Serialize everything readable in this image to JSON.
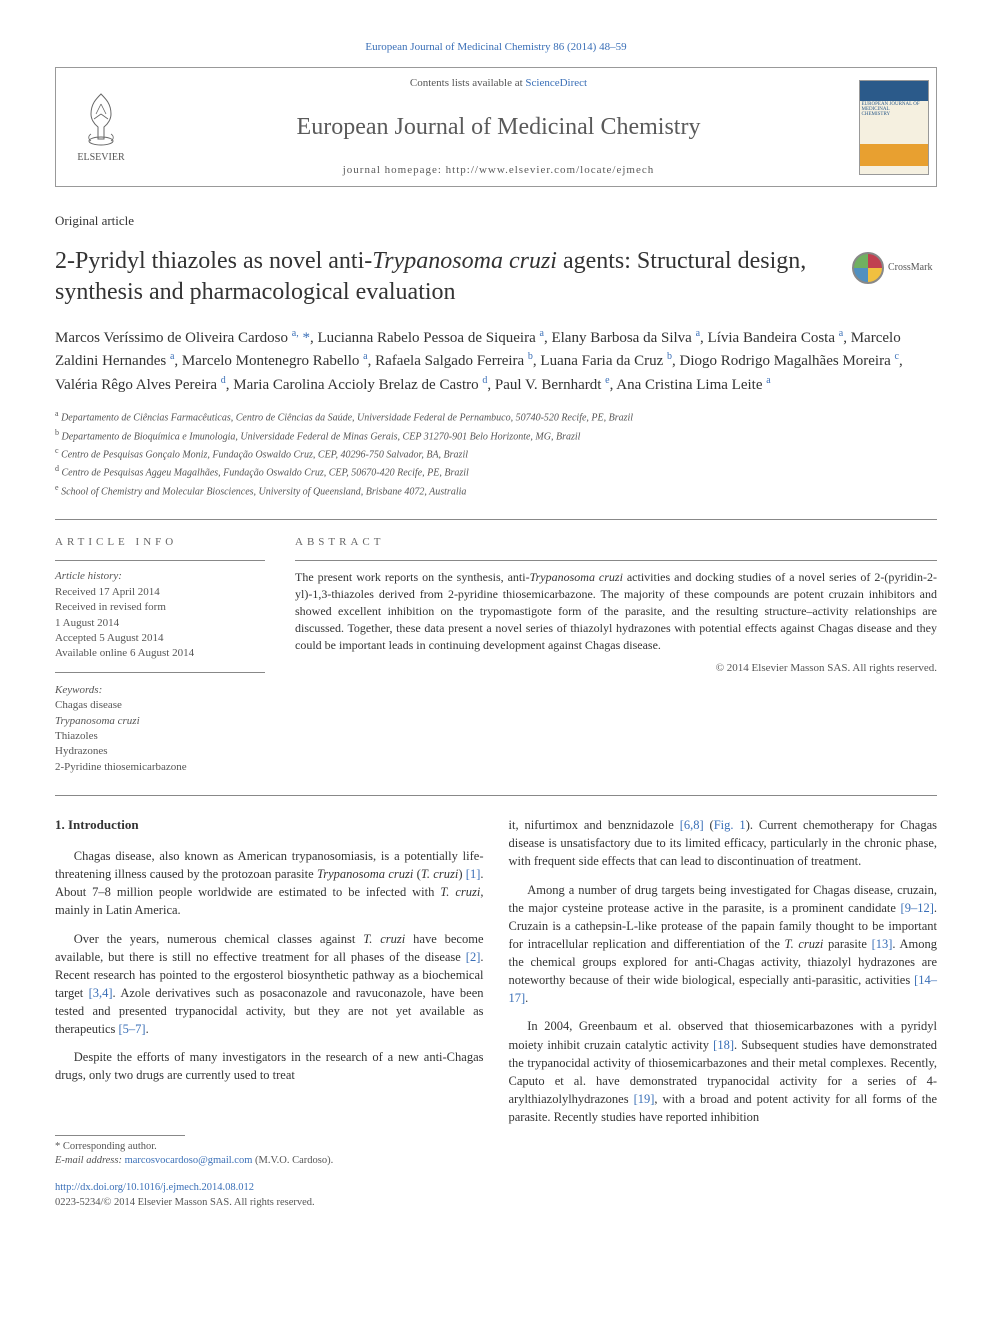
{
  "citation": "European Journal of Medicinal Chemistry 86 (2014) 48–59",
  "header": {
    "contents_prefix": "Contents lists available at ",
    "contents_link": "ScienceDirect",
    "journal_name": "European Journal of Medicinal Chemistry",
    "homepage_label": "journal homepage: http://www.elsevier.com/locate/ejmech",
    "elsevier_label": "ELSEVIER"
  },
  "article_type": "Original article",
  "title_pre": "2-Pyridyl thiazoles as novel anti-",
  "title_em": "Trypanosoma cruzi",
  "title_post": " agents: Structural design, synthesis and pharmacological evaluation",
  "crossmark_label": "CrossMark",
  "authors_html": "Marcos Veríssimo de Oliveira Cardoso <sup>a,</sup> <span class='corr'>*</span>, Lucianna Rabelo Pessoa de Siqueira <sup>a</sup>, Elany Barbosa da Silva <sup>a</sup>, Lívia Bandeira Costa <sup>a</sup>, Marcelo Zaldini Hernandes <sup>a</sup>, Marcelo Montenegro Rabello <sup>a</sup>, Rafaela Salgado Ferreira <sup>b</sup>, Luana Faria da Cruz <sup>b</sup>, Diogo Rodrigo Magalhães Moreira <sup>c</sup>, Valéria Rêgo Alves Pereira <sup>d</sup>, Maria Carolina Accioly Brelaz de Castro <sup>d</sup>, Paul V. Bernhardt <sup>e</sup>, Ana Cristina Lima Leite <sup>a</sup>",
  "affiliations": [
    {
      "sup": "a",
      "text": " Departamento de Ciências Farmacêuticas, Centro de Ciências da Saúde, Universidade Federal de Pernambuco, 50740-520 Recife, PE, Brazil"
    },
    {
      "sup": "b",
      "text": " Departamento de Bioquímica e Imunologia, Universidade Federal de Minas Gerais, CEP 31270-901 Belo Horizonte, MG, Brazil"
    },
    {
      "sup": "c",
      "text": " Centro de Pesquisas Gonçalo Moniz, Fundação Oswaldo Cruz, CEP, 40296-750 Salvador, BA, Brazil"
    },
    {
      "sup": "d",
      "text": " Centro de Pesquisas Aggeu Magalhães, Fundação Oswaldo Cruz, CEP, 50670-420 Recife, PE, Brazil"
    },
    {
      "sup": "e",
      "text": " School of Chemistry and Molecular Biosciences, University of Queensland, Brisbane 4072, Australia"
    }
  ],
  "info": {
    "heading": "ARTICLE INFO",
    "history_label": "Article history:",
    "history": [
      "Received 17 April 2014",
      "Received in revised form",
      "1 August 2014",
      "Accepted 5 August 2014",
      "Available online 6 August 2014"
    ],
    "keywords_label": "Keywords:",
    "keywords": [
      "Chagas disease",
      "Trypanosoma cruzi",
      "Thiazoles",
      "Hydrazones",
      "2-Pyridine thiosemicarbazone"
    ]
  },
  "abstract": {
    "heading": "ABSTRACT",
    "text_parts": [
      {
        "t": "The present work reports on the synthesis, anti-"
      },
      {
        "t": "Trypanosoma cruzi",
        "em": true
      },
      {
        "t": " activities and docking studies of a novel series of 2-(pyridin-2-yl)-1,3-thiazoles derived from 2-pyridine thiosemicarbazone. The majority of these compounds are potent cruzain inhibitors and showed excellent inhibition on the trypomastigote form of the parasite, and the resulting structure–activity relationships are discussed. Together, these data present a novel series of thiazolyl hydrazones with potential effects against Chagas disease and they could be important leads in continuing development against Chagas disease."
      }
    ],
    "copyright": "© 2014 Elsevier Masson SAS. All rights reserved."
  },
  "intro_heading": "1. Introduction",
  "col1": [
    {
      "runs": [
        {
          "t": "Chagas disease, also known as American trypanosomiasis, is a potentially life-threatening illness caused by the protozoan parasite "
        },
        {
          "t": "Trypanosoma cruzi",
          "em": true
        },
        {
          "t": " ("
        },
        {
          "t": "T. cruzi",
          "em": true
        },
        {
          "t": ") "
        },
        {
          "t": "[1]",
          "ref": true
        },
        {
          "t": ". About 7–8 million people worldwide are estimated to be infected with "
        },
        {
          "t": "T. cruzi",
          "em": true
        },
        {
          "t": ", mainly in Latin America."
        }
      ]
    },
    {
      "runs": [
        {
          "t": "Over the years, numerous chemical classes against "
        },
        {
          "t": "T. cruzi",
          "em": true
        },
        {
          "t": " have become available, but there is still no effective treatment for all phases of the disease "
        },
        {
          "t": "[2]",
          "ref": true
        },
        {
          "t": ". Recent research has pointed to the ergosterol biosynthetic pathway as a biochemical target "
        },
        {
          "t": "[3,4]",
          "ref": true
        },
        {
          "t": ". Azole derivatives such as posaconazole and ravuconazole, have been tested and presented trypanocidal activity, but they are not yet available as therapeutics "
        },
        {
          "t": "[5–7]",
          "ref": true
        },
        {
          "t": "."
        }
      ]
    },
    {
      "runs": [
        {
          "t": "Despite the efforts of many investigators in the research of a new anti-Chagas drugs, only two drugs are currently used to treat"
        }
      ]
    }
  ],
  "col2": [
    {
      "runs": [
        {
          "t": "it, nifurtimox and benznidazole "
        },
        {
          "t": "[6,8]",
          "ref": true
        },
        {
          "t": " ("
        },
        {
          "t": "Fig. 1",
          "ref": true
        },
        {
          "t": "). Current chemotherapy for Chagas disease is unsatisfactory due to its limited efficacy, particularly in the chronic phase, with frequent side effects that can lead to discontinuation of treatment."
        }
      ],
      "noindent": true
    },
    {
      "runs": [
        {
          "t": "Among a number of drug targets being investigated for Chagas disease, cruzain, the major cysteine protease active in the parasite, is a prominent candidate "
        },
        {
          "t": "[9–12]",
          "ref": true
        },
        {
          "t": ". Cruzain is a cathepsin-L-like protease of the papain family thought to be important for intracellular replication and differentiation of the "
        },
        {
          "t": "T. cruzi",
          "em": true
        },
        {
          "t": " parasite "
        },
        {
          "t": "[13]",
          "ref": true
        },
        {
          "t": ". Among the chemical groups explored for anti-Chagas activity, thiazolyl hydrazones are noteworthy because of their wide biological, especially anti-parasitic, activities "
        },
        {
          "t": "[14–17]",
          "ref": true
        },
        {
          "t": "."
        }
      ]
    },
    {
      "runs": [
        {
          "t": "In 2004, Greenbaum et al. observed that thiosemicarbazones with a pyridyl moiety inhibit cruzain catalytic activity "
        },
        {
          "t": "[18]",
          "ref": true
        },
        {
          "t": ". Subsequent studies have demonstrated the trypanocidal activity of thiosemicarbazones and their metal complexes. Recently, Caputo et al. have demonstrated trypanocidal activity for a series of 4-arylthiazolylhydrazones "
        },
        {
          "t": "[19]",
          "ref": true
        },
        {
          "t": ", with a broad and potent activity for all forms of the parasite. Recently studies have reported inhibition"
        }
      ]
    }
  ],
  "footer": {
    "corr_label": "* Corresponding author.",
    "email_label": "E-mail address:",
    "email": "marcosvocardoso@gmail.com",
    "email_suffix": " (M.V.O. Cardoso).",
    "doi": "http://dx.doi.org/10.1016/j.ejmech.2014.08.012",
    "copyright": "0223-5234/© 2014 Elsevier Masson SAS. All rights reserved."
  },
  "colors": {
    "link": "#3a6fb7",
    "text": "#333333",
    "muted": "#555555",
    "border": "#888888"
  }
}
